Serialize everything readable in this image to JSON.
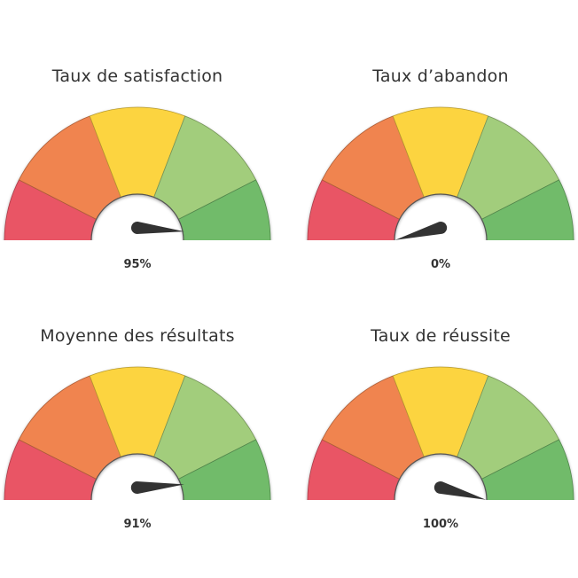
{
  "chart_data": {
    "type": "gauge",
    "min": 0,
    "max": 100,
    "bands": [
      {
        "color": "#e95565"
      },
      {
        "color": "#f0844f"
      },
      {
        "color": "#fcd440"
      },
      {
        "color": "#a2cd7c"
      },
      {
        "color": "#71bb6a"
      }
    ],
    "needle_color": "#333333",
    "gauges": [
      {
        "title": "Taux de satisfaction",
        "value": 95,
        "label": "95%"
      },
      {
        "title": "Taux d’abandon",
        "value": 0,
        "label": "0%"
      },
      {
        "title": "Moyenne des résultats",
        "value": 91,
        "label": "91%"
      },
      {
        "title": "Taux de réussite",
        "value": 100,
        "label": "100%"
      }
    ]
  }
}
